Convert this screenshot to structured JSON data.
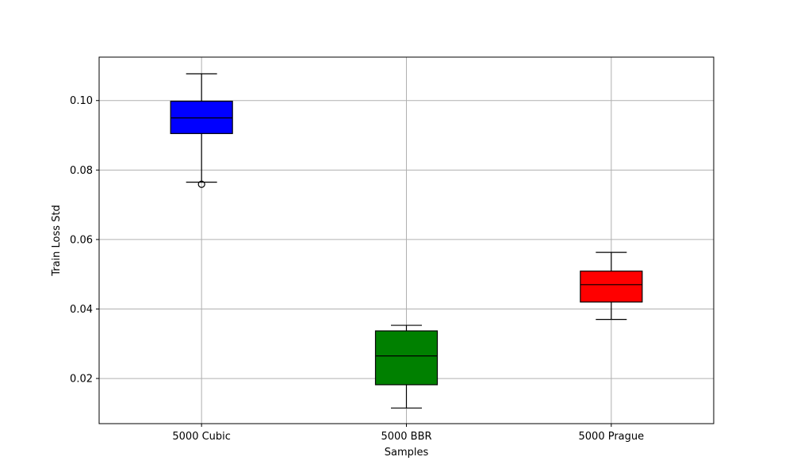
{
  "chart_data": {
    "type": "boxplot",
    "title": "",
    "xlabel": "Samples",
    "ylabel": "Train Loss Std",
    "ylim": [
      0.007,
      0.1125
    ],
    "yticks": [
      0.02,
      0.04,
      0.06,
      0.08,
      0.1
    ],
    "ytick_labels": [
      "0.02",
      "0.04",
      "0.06",
      "0.08",
      "0.10"
    ],
    "grid": true,
    "categories": [
      "5000 Cubic",
      "5000 BBR",
      "5000 Prague"
    ],
    "boxes": [
      {
        "name": "5000 Cubic",
        "whisker_low": 0.0765,
        "q1": 0.0905,
        "median": 0.095,
        "q3": 0.0998,
        "whisker_high": 0.1077,
        "outliers": [
          0.0759
        ],
        "color": "#0000ff"
      },
      {
        "name": "5000 BBR",
        "whisker_low": 0.0115,
        "q1": 0.0182,
        "median": 0.0265,
        "q3": 0.0337,
        "whisker_high": 0.0353,
        "outliers": [],
        "color": "#008000"
      },
      {
        "name": "5000 Prague",
        "whisker_low": 0.037,
        "q1": 0.042,
        "median": 0.047,
        "q3": 0.0509,
        "whisker_high": 0.0563,
        "outliers": [],
        "color": "#ff0000"
      }
    ]
  }
}
